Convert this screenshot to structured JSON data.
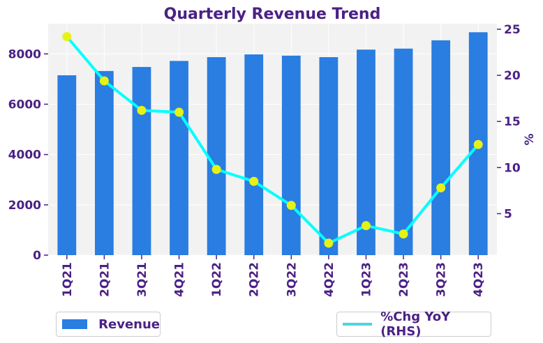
{
  "colors": {
    "bar": "#2a7de1",
    "line": "#00ffff",
    "marker": "#e6f216",
    "text": "#4b2185",
    "plot_bg": "#f2f2f2",
    "grid": "#ffffff"
  },
  "chart_data": {
    "type": "bar",
    "title": "Quarterly Revenue Trend",
    "categories": [
      "1Q21",
      "2Q21",
      "3Q21",
      "4Q21",
      "1Q22",
      "2Q22",
      "3Q22",
      "4Q22",
      "1Q23",
      "2Q23",
      "3Q23",
      "4Q23"
    ],
    "series": [
      {
        "name": "Revenue",
        "type": "bar",
        "axis": "left",
        "values": [
          7150,
          7320,
          7480,
          7720,
          7870,
          7980,
          7930,
          7870,
          8170,
          8210,
          8540,
          8860
        ]
      },
      {
        "name": "%Chg YoY (RHS)",
        "type": "line",
        "axis": "right",
        "values": [
          24.2,
          19.4,
          16.2,
          16.0,
          9.8,
          8.5,
          5.9,
          1.8,
          3.7,
          2.8,
          7.8,
          12.5
        ]
      }
    ],
    "ylim_left": [
      0,
      9200
    ],
    "yticks_left": [
      "0",
      "2000",
      "4000",
      "6000",
      "8000"
    ],
    "ylim_right": [
      0.5,
      25.6
    ],
    "yticks_right": [
      "5",
      "10",
      "15",
      "20",
      "25"
    ],
    "ylabel_right": "%",
    "xlabel": "",
    "ylabel": "",
    "grid": true,
    "legend": [
      {
        "label": "Revenue",
        "position": "bottom-left"
      },
      {
        "label": "%Chg YoY (RHS)",
        "position": "bottom-right"
      }
    ]
  }
}
